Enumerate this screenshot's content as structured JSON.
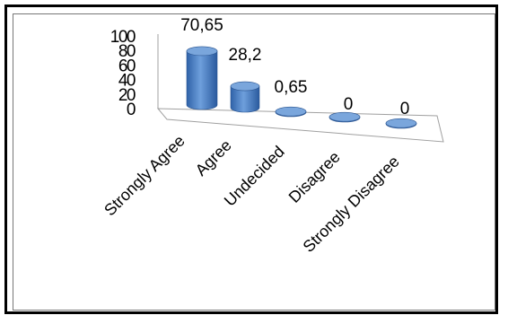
{
  "chart_data": {
    "type": "bar",
    "style": "3d-cylinder",
    "categories": [
      "Strongly Agree",
      "Agree",
      "Undecided",
      "Disagree",
      "Strongly Disagree"
    ],
    "values": [
      70.65,
      28.2,
      0.65,
      0,
      0
    ],
    "data_labels": [
      "70,65",
      "28,2",
      "0,65",
      "0",
      "0"
    ],
    "yticks": [
      "0",
      "20",
      "40",
      "60",
      "80",
      "100"
    ],
    "ylim": [
      0,
      100
    ],
    "grid": false,
    "legend": "none",
    "colors": {
      "bar": "#4a7ec3",
      "bar_dark": "#2a5a9e",
      "bar_light": "#7aa6dc"
    }
  }
}
